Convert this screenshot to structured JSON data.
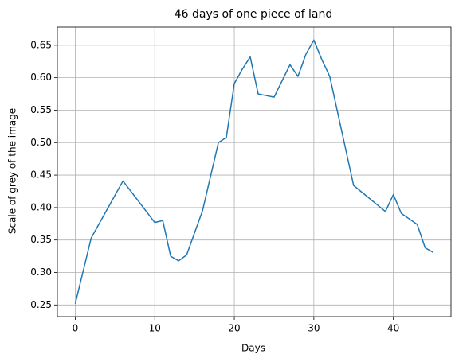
{
  "chart_data": {
    "type": "line",
    "title": "46 days of one piece of land",
    "xlabel": "Days",
    "ylabel": "Scale of grey of the image",
    "x": [
      0,
      2,
      6,
      10,
      11,
      12,
      13,
      14,
      16,
      18,
      19,
      20,
      21,
      22,
      23,
      25,
      27,
      28,
      29,
      30,
      31,
      32,
      35,
      39,
      40,
      41,
      43,
      44,
      45
    ],
    "values": [
      0.252,
      0.353,
      0.441,
      0.377,
      0.38,
      0.325,
      0.318,
      0.327,
      0.395,
      0.5,
      0.508,
      0.591,
      0.613,
      0.632,
      0.575,
      0.57,
      0.62,
      0.602,
      0.636,
      0.658,
      0.628,
      0.602,
      0.434,
      0.394,
      0.42,
      0.391,
      0.374,
      0.338,
      0.331
    ],
    "color": "#1f77b4",
    "xlim": [
      -2.25,
      47.25
    ],
    "ylim": [
      0.232,
      0.678
    ],
    "xticks": [
      0,
      10,
      20,
      30,
      40
    ],
    "yticks": [
      0.25,
      {
        "value": 0.3,
        "label": "0.30"
      },
      0.35,
      {
        "value": 0.4,
        "label": "0.40"
      },
      0.45,
      {
        "value": 0.5,
        "label": "0.50"
      },
      0.55,
      {
        "value": 0.6,
        "label": "0.60"
      },
      0.65
    ],
    "grid": true
  }
}
